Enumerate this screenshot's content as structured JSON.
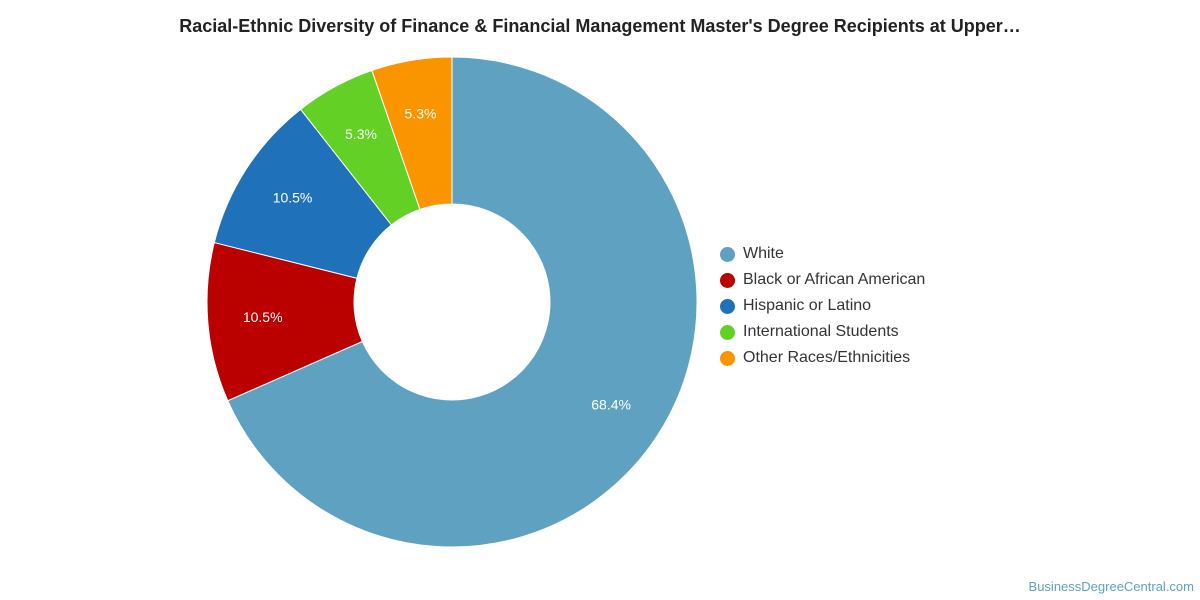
{
  "chart_data": {
    "type": "pie",
    "donut": true,
    "title": "Racial-Ethnic Diversity of Finance & Financial Management Master's Degree Recipients at Upper…",
    "series": [
      {
        "name": "White",
        "value": 68.4,
        "label": "68.4%",
        "color": "#5ea1c0"
      },
      {
        "name": "Black or African American",
        "value": 10.5,
        "label": "10.5%",
        "color": "#bb0000"
      },
      {
        "name": "Hispanic or Latino",
        "value": 10.5,
        "label": "10.5%",
        "color": "#1f72b9"
      },
      {
        "name": "International Students",
        "value": 5.3,
        "label": "5.3%",
        "color": "#63d026"
      },
      {
        "name": "Other Races/Ethnicities",
        "value": 5.3,
        "label": "5.3%",
        "color": "#fa9500"
      }
    ],
    "legend_position": "right"
  },
  "footer": {
    "source": "BusinessDegreeCentral.com"
  }
}
